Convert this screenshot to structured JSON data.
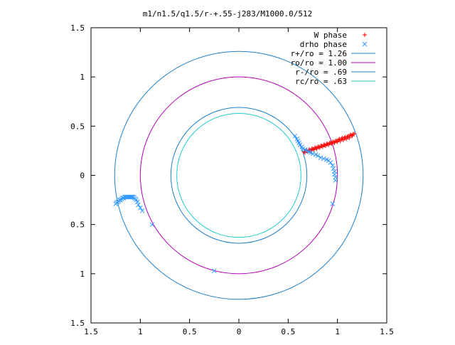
{
  "chart_data": {
    "type": "scatter",
    "title": "m1/n1.5/q1.5/r-+.55-j283/M1000.0/512",
    "xlabel": "",
    "ylabel": "",
    "xlim": [
      -1.5,
      1.5
    ],
    "ylim": [
      -1.5,
      1.5
    ],
    "x_ticks": [
      -1.5,
      -1,
      -0.5,
      0,
      0.5,
      1,
      1.5
    ],
    "y_ticks": [
      -1.5,
      -1,
      -0.5,
      0,
      0.5,
      1,
      1.5
    ],
    "x_tick_labels": [
      "1.5",
      "1",
      "0.5",
      "0",
      "0.5",
      "1",
      "1.5"
    ],
    "y_tick_labels": [
      "1.5",
      "1",
      "0.5",
      "0",
      "0.5",
      "1",
      "1.5"
    ],
    "grid": false,
    "legend_position": "top-right",
    "series": [
      {
        "name": "W phase",
        "kind": "points",
        "marker": "plus",
        "color": "#ff0000",
        "points": [
          [
            0.66,
            0.24
          ],
          [
            0.69,
            0.25
          ],
          [
            0.72,
            0.26
          ],
          [
            0.75,
            0.27
          ],
          [
            0.78,
            0.28
          ],
          [
            0.81,
            0.29
          ],
          [
            0.84,
            0.3
          ],
          [
            0.87,
            0.31
          ],
          [
            0.9,
            0.32
          ],
          [
            0.93,
            0.33
          ],
          [
            0.96,
            0.34
          ],
          [
            0.99,
            0.35
          ],
          [
            1.02,
            0.37
          ],
          [
            1.05,
            0.38
          ],
          [
            1.08,
            0.39
          ],
          [
            1.11,
            0.4
          ],
          [
            1.14,
            0.41
          ],
          [
            1.17,
            0.42
          ],
          [
            0.67,
            0.23
          ],
          [
            0.7,
            0.24
          ],
          [
            0.73,
            0.25
          ],
          [
            0.76,
            0.26
          ],
          [
            0.79,
            0.27
          ],
          [
            0.82,
            0.28
          ],
          [
            0.85,
            0.29
          ],
          [
            0.88,
            0.3
          ],
          [
            0.91,
            0.31
          ],
          [
            0.94,
            0.32
          ],
          [
            0.97,
            0.33
          ],
          [
            1.0,
            0.34
          ],
          [
            1.03,
            0.35
          ],
          [
            1.06,
            0.36
          ],
          [
            1.09,
            0.37
          ],
          [
            1.12,
            0.38
          ],
          [
            1.15,
            0.4
          ],
          [
            0.68,
            0.25
          ],
          [
            0.71,
            0.26
          ],
          [
            0.74,
            0.27
          ],
          [
            0.77,
            0.28
          ],
          [
            0.8,
            0.29
          ],
          [
            0.83,
            0.3
          ],
          [
            0.86,
            0.31
          ],
          [
            0.89,
            0.32
          ],
          [
            0.92,
            0.33
          ],
          [
            0.95,
            0.34
          ],
          [
            0.98,
            0.35
          ],
          [
            1.01,
            0.36
          ],
          [
            1.04,
            0.37
          ],
          [
            1.07,
            0.38
          ],
          [
            1.1,
            0.39
          ],
          [
            1.13,
            0.41
          ],
          [
            1.16,
            0.42
          ]
        ]
      },
      {
        "name": "drho phase",
        "kind": "points",
        "marker": "cross",
        "color": "#3399ff",
        "points": [
          [
            0.57,
            0.4
          ],
          [
            0.59,
            0.37
          ],
          [
            0.6,
            0.35
          ],
          [
            0.61,
            0.33
          ],
          [
            0.62,
            0.31
          ],
          [
            0.64,
            0.29
          ],
          [
            0.65,
            0.27
          ],
          [
            0.67,
            0.26
          ],
          [
            0.69,
            0.25
          ],
          [
            0.71,
            0.24
          ],
          [
            0.73,
            0.23
          ],
          [
            0.75,
            0.22
          ],
          [
            0.78,
            0.21
          ],
          [
            0.8,
            0.2
          ],
          [
            0.83,
            0.18
          ],
          [
            0.86,
            0.17
          ],
          [
            0.89,
            0.16
          ],
          [
            0.91,
            0.15
          ],
          [
            0.93,
            0.13
          ],
          [
            0.95,
            0.1
          ],
          [
            0.96,
            0.07
          ],
          [
            0.97,
            0.04
          ],
          [
            0.97,
            0.01
          ],
          [
            0.98,
            -0.02
          ],
          [
            0.98,
            -0.05
          ],
          [
            0.95,
            -0.29
          ],
          [
            -1.25,
            -0.29
          ],
          [
            -1.24,
            -0.28
          ],
          [
            -1.23,
            -0.27
          ],
          [
            -1.22,
            -0.26
          ],
          [
            -1.21,
            -0.25
          ],
          [
            -1.2,
            -0.25
          ],
          [
            -1.19,
            -0.24
          ],
          [
            -1.18,
            -0.23
          ],
          [
            -1.17,
            -0.23
          ],
          [
            -1.16,
            -0.22
          ],
          [
            -1.15,
            -0.22
          ],
          [
            -1.14,
            -0.22
          ],
          [
            -1.13,
            -0.22
          ],
          [
            -1.12,
            -0.22
          ],
          [
            -1.11,
            -0.22
          ],
          [
            -1.1,
            -0.22
          ],
          [
            -1.09,
            -0.22
          ],
          [
            -1.08,
            -0.22
          ],
          [
            -1.07,
            -0.22
          ],
          [
            -1.06,
            -0.23
          ],
          [
            -1.05,
            -0.24
          ],
          [
            -1.04,
            -0.25
          ],
          [
            -1.03,
            -0.27
          ],
          [
            -1.02,
            -0.3
          ],
          [
            -1.0,
            -0.33
          ],
          [
            -0.98,
            -0.36
          ],
          [
            -0.88,
            -0.5
          ],
          [
            -0.25,
            -0.97
          ]
        ]
      },
      {
        "name": "r+/ro = 1.26",
        "kind": "circle",
        "radius": 1.26,
        "color": "#1f7fc9"
      },
      {
        "name": "ro/ro = 1.00",
        "kind": "circle",
        "radius": 1.0,
        "color": "#b300b3"
      },
      {
        "name": "r-/ro = .69",
        "kind": "circle",
        "radius": 0.69,
        "color": "#1f7fc9"
      },
      {
        "name": "rc/ro = .63",
        "kind": "circle",
        "radius": 0.63,
        "color": "#22cccc"
      }
    ]
  }
}
